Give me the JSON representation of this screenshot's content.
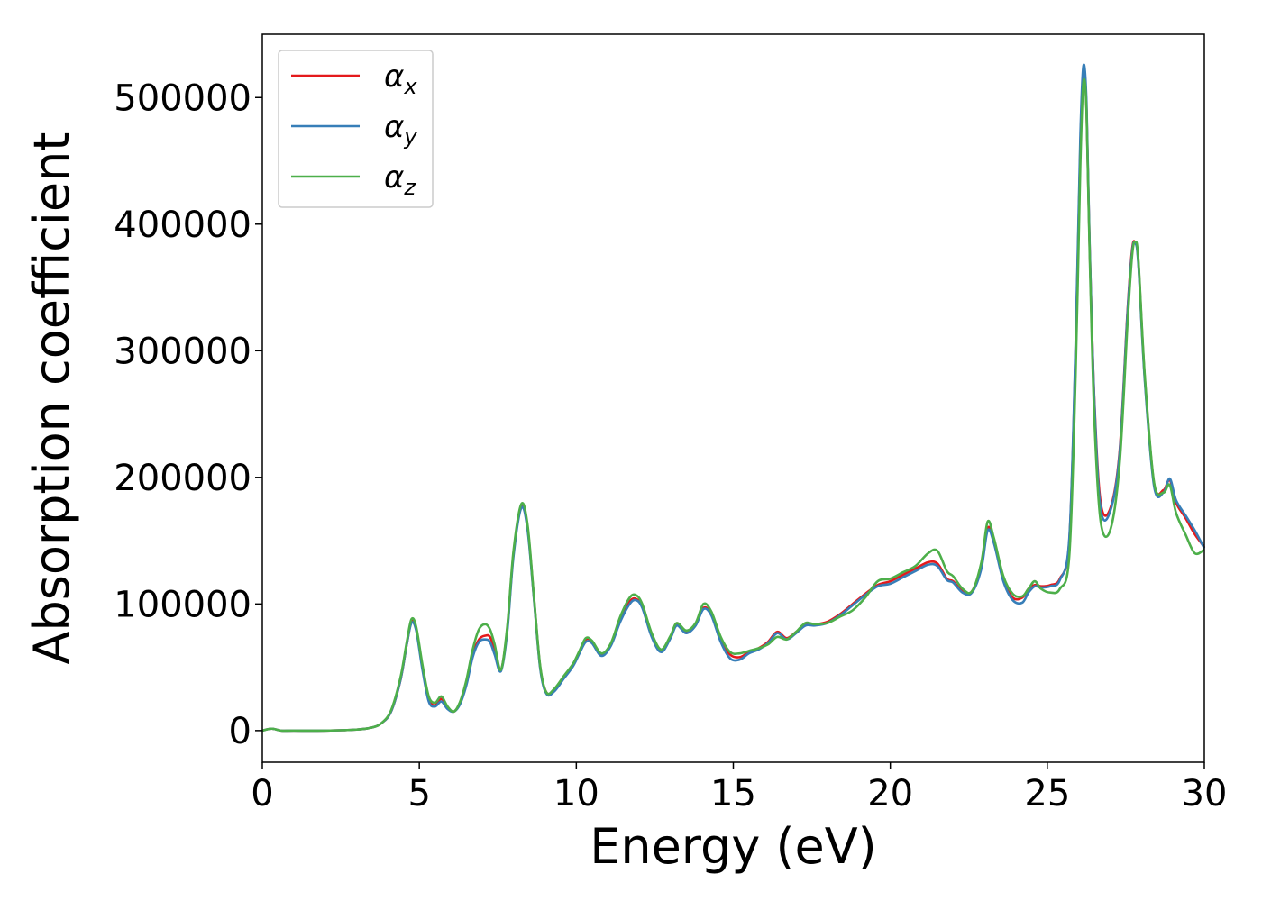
{
  "chart_data": {
    "type": "line",
    "title": "",
    "xlabel": "Energy (eV)",
    "ylabel": "Absorption coefficient",
    "xlim": [
      0,
      30
    ],
    "ylim": [
      -25000,
      550000
    ],
    "xticks": [
      0,
      5,
      10,
      15,
      20,
      25,
      30
    ],
    "xtick_labels": [
      "0",
      "5",
      "10",
      "15",
      "20",
      "25",
      "30"
    ],
    "yticks": [
      0,
      100000,
      200000,
      300000,
      400000,
      500000
    ],
    "ytick_labels": [
      "0",
      "100000",
      "200000",
      "300000",
      "400000",
      "500000"
    ],
    "grid": false,
    "legend_position": "top-left",
    "series": [
      {
        "name": "α",
        "subscript": "x",
        "color": "#e41a1c",
        "x": [
          0,
          0.3,
          0.6,
          1,
          2,
          3,
          3.5,
          3.8,
          4.1,
          4.4,
          4.6,
          4.75,
          4.9,
          5.1,
          5.3,
          5.5,
          5.7,
          5.9,
          6.1,
          6.3,
          6.5,
          6.7,
          6.9,
          7.1,
          7.25,
          7.4,
          7.6,
          7.8,
          8.0,
          8.25,
          8.45,
          8.65,
          8.85,
          9.05,
          9.3,
          9.6,
          9.9,
          10.1,
          10.3,
          10.5,
          10.8,
          11.1,
          11.4,
          11.7,
          11.9,
          12.1,
          12.4,
          12.7,
          13.0,
          13.2,
          13.5,
          13.8,
          14.05,
          14.3,
          14.6,
          14.9,
          15.2,
          15.5,
          15.8,
          16.1,
          16.4,
          16.7,
          17.0,
          17.3,
          17.6,
          18.0,
          18.4,
          18.8,
          19.2,
          19.6,
          20.0,
          20.4,
          20.8,
          21.2,
          21.5,
          21.8,
          22.0,
          22.3,
          22.6,
          22.9,
          23.1,
          23.3,
          23.6,
          23.9,
          24.2,
          24.4,
          24.6,
          24.8,
          25.1,
          25.4,
          25.7,
          25.9,
          26.05,
          26.15,
          26.25,
          26.35,
          26.5,
          26.7,
          27.0,
          27.3,
          27.55,
          27.7,
          27.8,
          27.9,
          28.1,
          28.4,
          28.7,
          28.9,
          29.1,
          29.4,
          29.7,
          30.0
        ],
        "y": [
          0,
          1500,
          0,
          0,
          0,
          800,
          2500,
          6000,
          15000,
          40000,
          68000,
          86000,
          80000,
          50000,
          25000,
          20000,
          25000,
          18000,
          15000,
          22000,
          38000,
          60000,
          72000,
          75000,
          74000,
          64000,
          48000,
          80000,
          140000,
          178000,
          160000,
          105000,
          50000,
          30000,
          32000,
          42000,
          52000,
          62000,
          72000,
          70000,
          60000,
          68000,
          88000,
          102000,
          104000,
          98000,
          75000,
          63000,
          74000,
          84000,
          78000,
          84000,
          97000,
          92000,
          72000,
          60000,
          58000,
          62000,
          65000,
          70000,
          78000,
          73000,
          78000,
          84000,
          84000,
          86000,
          92000,
          100000,
          108000,
          115000,
          118000,
          123000,
          128000,
          133000,
          132000,
          120000,
          118000,
          110000,
          110000,
          130000,
          160000,
          150000,
          120000,
          105000,
          105000,
          112000,
          115000,
          114000,
          115000,
          120000,
          150000,
          300000,
          460000,
          520000,
          490000,
          380000,
          260000,
          180000,
          175000,
          220000,
          330000,
          380000,
          385000,
          370000,
          280000,
          195000,
          190000,
          198000,
          180000,
          168000,
          155000,
          145000
        ]
      },
      {
        "name": "α",
        "subscript": "y",
        "color": "#377eb8",
        "x": [
          0,
          0.3,
          0.6,
          1,
          2,
          3,
          3.5,
          3.8,
          4.1,
          4.4,
          4.6,
          4.75,
          4.9,
          5.1,
          5.3,
          5.5,
          5.7,
          5.9,
          6.1,
          6.3,
          6.5,
          6.7,
          6.9,
          7.1,
          7.25,
          7.4,
          7.6,
          7.8,
          8.0,
          8.25,
          8.45,
          8.65,
          8.85,
          9.05,
          9.3,
          9.6,
          9.9,
          10.1,
          10.3,
          10.5,
          10.8,
          11.1,
          11.4,
          11.7,
          11.9,
          12.1,
          12.4,
          12.7,
          13.0,
          13.2,
          13.5,
          13.8,
          14.05,
          14.3,
          14.6,
          14.9,
          15.2,
          15.5,
          15.8,
          16.1,
          16.4,
          16.7,
          17.0,
          17.3,
          17.6,
          18.0,
          18.4,
          18.8,
          19.2,
          19.6,
          20.0,
          20.4,
          20.8,
          21.2,
          21.5,
          21.8,
          22.0,
          22.3,
          22.6,
          22.9,
          23.1,
          23.3,
          23.6,
          23.9,
          24.2,
          24.4,
          24.6,
          24.8,
          25.1,
          25.4,
          25.7,
          25.9,
          26.05,
          26.15,
          26.25,
          26.35,
          26.5,
          26.7,
          27.0,
          27.3,
          27.55,
          27.7,
          27.8,
          27.9,
          28.1,
          28.4,
          28.7,
          28.9,
          29.1,
          29.4,
          29.7,
          30.0
        ],
        "y": [
          0,
          1500,
          0,
          0,
          0,
          800,
          2500,
          6000,
          15000,
          40000,
          68000,
          85000,
          79000,
          48000,
          23000,
          19000,
          23000,
          17000,
          15000,
          21000,
          36000,
          58000,
          70000,
          72000,
          70000,
          60000,
          47000,
          78000,
          138000,
          176000,
          158000,
          104000,
          49000,
          29000,
          31000,
          41000,
          51000,
          61000,
          70000,
          69000,
          59000,
          67000,
          86000,
          100000,
          103000,
          97000,
          74000,
          62000,
          73000,
          83000,
          77000,
          83000,
          96000,
          91000,
          70000,
          57000,
          56000,
          61000,
          64000,
          69000,
          77000,
          72000,
          77000,
          83000,
          83000,
          85000,
          91000,
          99000,
          107000,
          114000,
          116000,
          121000,
          126000,
          131000,
          130000,
          119000,
          117000,
          109000,
          109000,
          128000,
          158000,
          148000,
          118000,
          103000,
          101000,
          109000,
          114000,
          113000,
          114000,
          119000,
          152000,
          305000,
          468000,
          525000,
          495000,
          382000,
          258000,
          175000,
          173000,
          218000,
          328000,
          378000,
          385000,
          368000,
          278000,
          193000,
          188000,
          199000,
          182000,
          170000,
          158000,
          144000
        ]
      },
      {
        "name": "α",
        "subscript": "z",
        "color": "#4daf4a",
        "x": [
          0,
          0.3,
          0.6,
          1,
          2,
          3,
          3.5,
          3.8,
          4.1,
          4.4,
          4.6,
          4.75,
          4.9,
          5.1,
          5.3,
          5.5,
          5.7,
          5.9,
          6.1,
          6.3,
          6.5,
          6.7,
          6.9,
          7.1,
          7.25,
          7.4,
          7.6,
          7.8,
          8.0,
          8.25,
          8.45,
          8.65,
          8.85,
          9.05,
          9.3,
          9.6,
          9.9,
          10.1,
          10.3,
          10.5,
          10.8,
          11.1,
          11.4,
          11.7,
          11.9,
          12.1,
          12.4,
          12.7,
          13.0,
          13.2,
          13.5,
          13.8,
          14.05,
          14.3,
          14.6,
          14.9,
          15.2,
          15.5,
          15.8,
          16.1,
          16.4,
          16.7,
          17.0,
          17.3,
          17.6,
          18.0,
          18.4,
          18.8,
          19.2,
          19.6,
          20.0,
          20.4,
          20.8,
          21.2,
          21.5,
          21.8,
          22.0,
          22.3,
          22.6,
          22.9,
          23.1,
          23.3,
          23.6,
          23.9,
          24.2,
          24.4,
          24.6,
          24.8,
          25.1,
          25.4,
          25.7,
          25.9,
          26.05,
          26.15,
          26.25,
          26.35,
          26.5,
          26.7,
          27.0,
          27.3,
          27.55,
          27.7,
          27.8,
          27.9,
          28.1,
          28.4,
          28.7,
          28.9,
          29.1,
          29.4,
          29.7,
          30.0
        ],
        "y": [
          0,
          1500,
          0,
          0,
          0,
          800,
          2500,
          6000,
          16000,
          42000,
          70000,
          88000,
          82000,
          52000,
          27000,
          22000,
          27000,
          19000,
          15000,
          23000,
          40000,
          64000,
          80000,
          84000,
          80000,
          68000,
          48000,
          82000,
          142000,
          179000,
          162000,
          106000,
          51000,
          30000,
          33000,
          43000,
          53000,
          63000,
          73000,
          71000,
          61000,
          69000,
          90000,
          105000,
          107000,
          100000,
          77000,
          64000,
          75000,
          85000,
          79000,
          85000,
          100000,
          94000,
          74000,
          62000,
          61000,
          63000,
          65000,
          68000,
          74000,
          72000,
          78000,
          85000,
          84000,
          85000,
          90000,
          95000,
          105000,
          118000,
          120000,
          125000,
          130000,
          140000,
          142000,
          126000,
          122000,
          112000,
          110000,
          133000,
          165000,
          152000,
          122000,
          108000,
          106000,
          112000,
          118000,
          112000,
          109000,
          112000,
          138000,
          280000,
          445000,
          512000,
          488000,
          375000,
          245000,
          165000,
          158000,
          210000,
          320000,
          375000,
          386000,
          372000,
          282000,
          196000,
          188000,
          194000,
          172000,
          155000,
          140000,
          143000
        ]
      }
    ]
  }
}
